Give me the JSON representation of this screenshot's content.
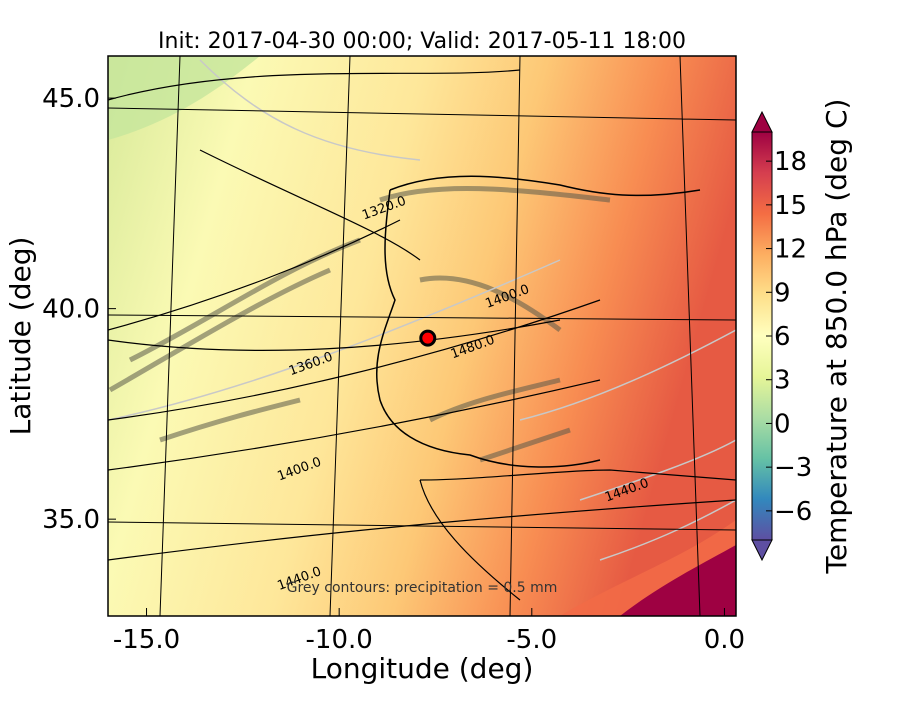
{
  "chart_data": {
    "type": "heatmap",
    "title": "Init: 2017-04-30 00:00; Valid: 2017-05-11 18:00",
    "xlabel": "Longitude (deg)",
    "ylabel": "Latitude (deg)",
    "xlim": [
      -16.0,
      0.3
    ],
    "ylim": [
      32.7,
      46.0
    ],
    "x_ticks": [
      -15.0,
      -10.0,
      -5.0,
      0.0
    ],
    "x_tick_labels": [
      "-15.0",
      "-10.0",
      "-5.0",
      "0.0"
    ],
    "y_ticks": [
      35.0,
      40.0,
      45.0
    ],
    "y_tick_labels": [
      "35.0",
      "40.0",
      "45.0"
    ],
    "colorbar": {
      "label": "Temperature at 850.0 hPa (deg C)",
      "range": [
        -8,
        20
      ],
      "ticks": [
        -6,
        -3,
        0,
        3,
        6,
        9,
        12,
        15,
        18
      ],
      "tick_labels": [
        "−6",
        "−3",
        "0",
        "3",
        "6",
        "9",
        "12",
        "15",
        "18"
      ],
      "colormap": "Spectral_r",
      "extend": "both"
    },
    "contour_labels": [
      {
        "text": "1320.0",
        "lon": -8.8,
        "lat": 42.3
      },
      {
        "text": "1360.0",
        "lon": -10.7,
        "lat": 38.6
      },
      {
        "text": "1400.0",
        "lon": -11.0,
        "lat": 36.1
      },
      {
        "text": "1440.0",
        "lon": -11.0,
        "lat": 33.5
      },
      {
        "text": "1440.0",
        "lon": -2.5,
        "lat": 35.6
      },
      {
        "text": "1480.0",
        "lon": -6.5,
        "lat": 39.0
      },
      {
        "text": "1400.0",
        "lon": -5.6,
        "lat": 40.2
      }
    ],
    "annotation": "Grey contours: precipitation = 0.5 mm",
    "marker": {
      "lon": -7.7,
      "lat": 39.3,
      "color": "#ff0000"
    }
  }
}
